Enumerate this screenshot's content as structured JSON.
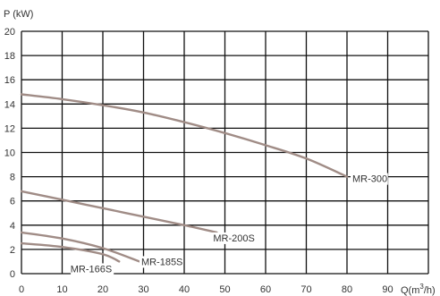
{
  "chart_data": {
    "type": "line",
    "title": "",
    "ylabel": "P (kW)",
    "xlabel": "Q(m3/h)",
    "xlabel_parts": {
      "main": "Q(m",
      "sup": "3",
      "tail": "/h)"
    },
    "xlim": [
      0,
      100
    ],
    "ylim": [
      0,
      20
    ],
    "xticks": [
      0,
      10,
      20,
      30,
      40,
      50,
      60,
      70,
      80,
      90
    ],
    "yticks": [
      0,
      2,
      4,
      6,
      8,
      10,
      12,
      14,
      16,
      18,
      20
    ],
    "grid": true,
    "line_color": "#a08c86",
    "series": [
      {
        "name": "MR-300",
        "x": [
          0,
          10,
          20,
          30,
          40,
          50,
          60,
          70,
          80
        ],
        "y": [
          14.8,
          14.4,
          13.9,
          13.3,
          12.5,
          11.6,
          10.6,
          9.5,
          8.0
        ]
      },
      {
        "name": "MR-200S",
        "x": [
          0,
          10,
          20,
          30,
          40,
          48
        ],
        "y": [
          6.8,
          6.1,
          5.4,
          4.7,
          4.0,
          3.4
        ]
      },
      {
        "name": "MR-185S",
        "x": [
          0,
          10,
          20,
          29
        ],
        "y": [
          3.4,
          2.9,
          2.1,
          1.0
        ]
      },
      {
        "name": "MR-166S",
        "x": [
          0,
          10,
          20,
          24
        ],
        "y": [
          2.5,
          2.2,
          1.6,
          1.0
        ]
      }
    ]
  }
}
